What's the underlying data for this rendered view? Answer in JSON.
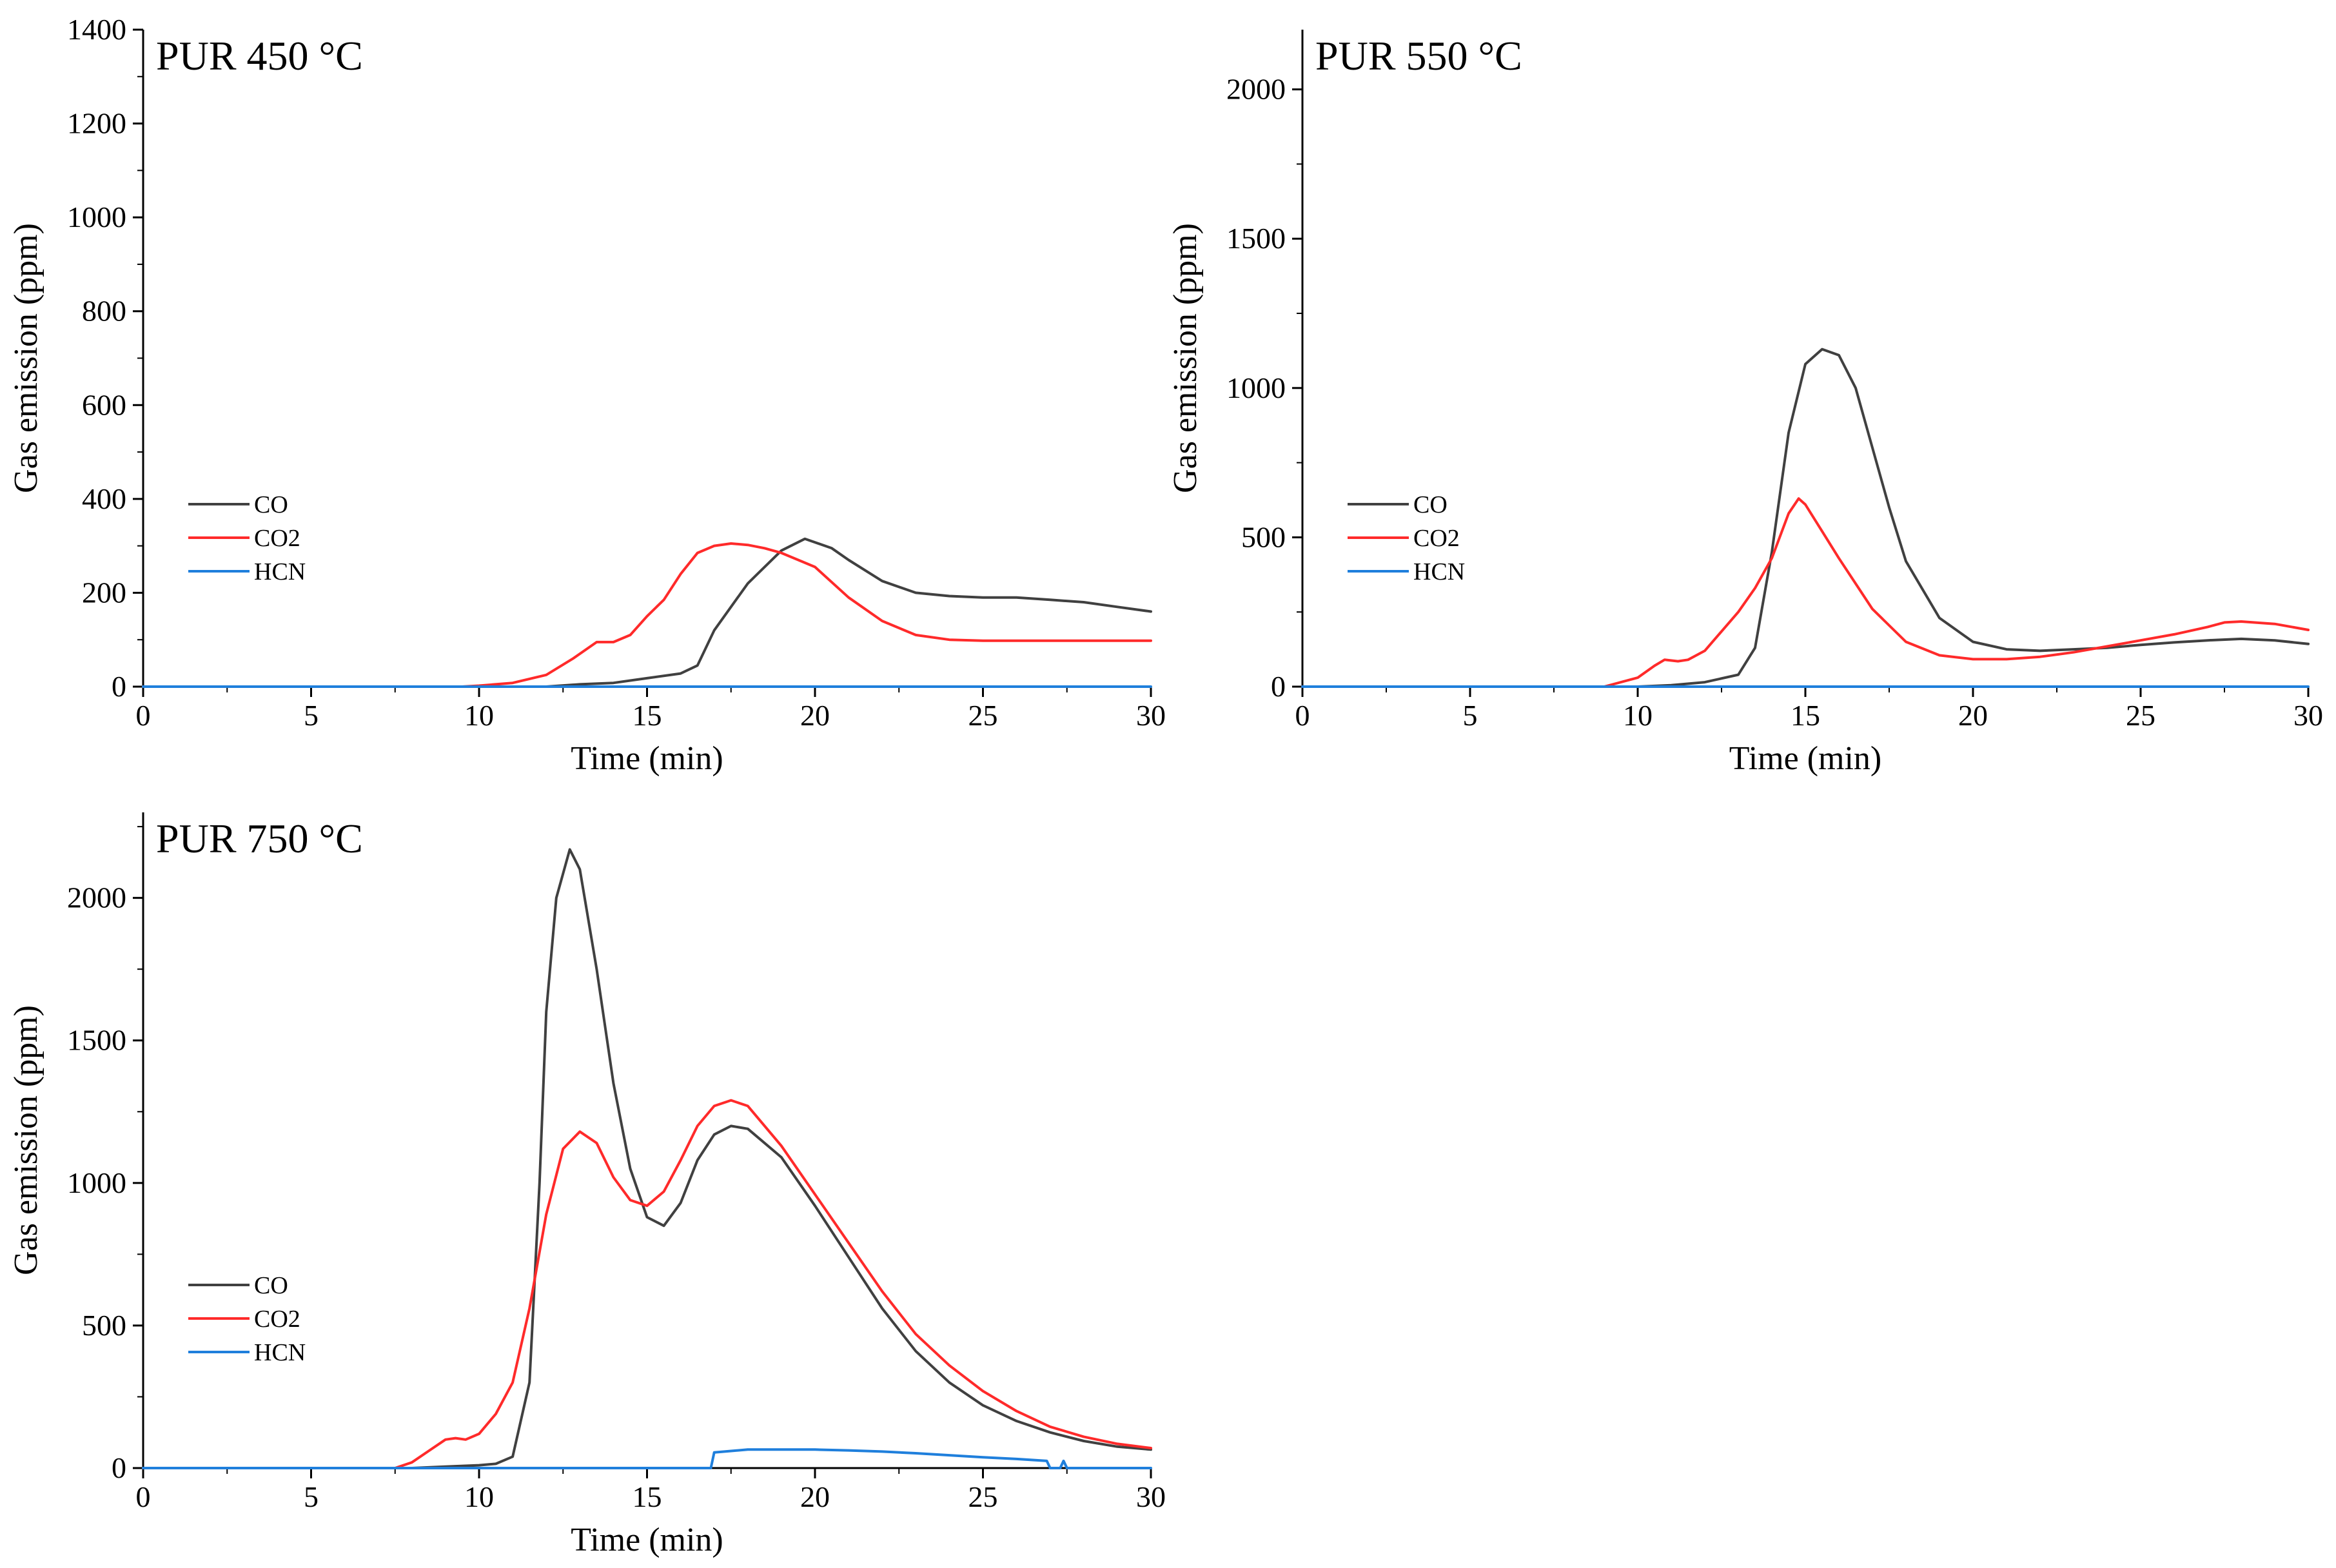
{
  "figure": {
    "background": "#ffffff"
  },
  "colors": {
    "CO": "#404040",
    "CO2": "#ff2a2a",
    "HCN": "#1f7fdc",
    "axis": "#000000"
  },
  "chart_data": [
    {
      "type": "line",
      "title": "PUR 450 °C",
      "xlabel": "Time (min)",
      "ylabel": "Gas emission (ppm)",
      "xlim": [
        0,
        30
      ],
      "ylim": [
        0,
        1400
      ],
      "xticks": [
        0,
        5,
        10,
        15,
        20,
        25,
        30
      ],
      "yticks": [
        0,
        200,
        400,
        600,
        800,
        1000,
        1200,
        1400
      ],
      "grid": false,
      "legend": "left-middle",
      "series": [
        {
          "name": "CO",
          "x": [
            0,
            12,
            13,
            14,
            15,
            16,
            16.5,
            17,
            18,
            19,
            19.7,
            20.5,
            21,
            22,
            23,
            24,
            25,
            26,
            27,
            28,
            29,
            30
          ],
          "values": [
            0,
            0,
            5,
            8,
            18,
            28,
            45,
            120,
            220,
            290,
            315,
            295,
            270,
            225,
            200,
            193,
            190,
            190,
            185,
            180,
            170,
            160
          ]
        },
        {
          "name": "CO2",
          "x": [
            0,
            9.5,
            10,
            11,
            12,
            12.8,
            13.5,
            14,
            14.5,
            15,
            15.5,
            16,
            16.5,
            17,
            17.5,
            18,
            18.5,
            19,
            19.5,
            20,
            21,
            22,
            23,
            24,
            25,
            26,
            27,
            28,
            29,
            30
          ],
          "values": [
            0,
            0,
            2,
            8,
            25,
            60,
            95,
            95,
            110,
            150,
            185,
            240,
            285,
            300,
            305,
            302,
            295,
            285,
            270,
            255,
            190,
            140,
            110,
            100,
            98,
            98,
            98,
            98,
            98,
            98
          ]
        },
        {
          "name": "HCN",
          "x": [
            0,
            30
          ],
          "values": [
            0,
            0
          ]
        }
      ]
    },
    {
      "type": "line",
      "title": "PUR 550 °C",
      "xlabel": "Time (min)",
      "ylabel": "Gas emission (ppm)",
      "xlim": [
        0,
        30
      ],
      "ylim": [
        0,
        2200
      ],
      "xticks": [
        0,
        5,
        10,
        15,
        20,
        25,
        30
      ],
      "yticks": [
        0,
        500,
        1000,
        1500,
        2000
      ],
      "grid": false,
      "legend": "left-middle",
      "series": [
        {
          "name": "CO",
          "x": [
            0,
            10,
            11,
            12,
            13,
            13.5,
            14,
            14.5,
            15,
            15.5,
            16,
            16.5,
            17,
            17.5,
            18,
            19,
            20,
            21,
            22,
            23,
            24,
            25,
            26,
            27,
            28,
            29,
            30
          ],
          "values": [
            0,
            0,
            5,
            15,
            40,
            130,
            450,
            850,
            1080,
            1130,
            1110,
            1000,
            800,
            600,
            420,
            230,
            150,
            125,
            120,
            125,
            130,
            140,
            148,
            155,
            160,
            155,
            143
          ]
        },
        {
          "name": "CO2",
          "x": [
            0,
            9,
            10,
            10.5,
            10.8,
            11.2,
            11.5,
            12,
            13,
            13.5,
            14,
            14.5,
            14.8,
            15,
            15.5,
            16,
            17,
            18,
            19,
            20,
            21,
            22,
            23,
            24,
            25,
            26,
            27,
            27.5,
            28,
            29,
            30
          ],
          "values": [
            0,
            0,
            30,
            70,
            90,
            85,
            90,
            120,
            250,
            330,
            430,
            580,
            630,
            610,
            520,
            430,
            260,
            150,
            105,
            92,
            92,
            100,
            115,
            135,
            155,
            175,
            200,
            215,
            218,
            210,
            190
          ]
        },
        {
          "name": "HCN",
          "x": [
            0,
            30
          ],
          "values": [
            0,
            0
          ]
        }
      ]
    },
    {
      "type": "line",
      "title": "PUR 750 °C",
      "xlabel": "Time (min)",
      "ylabel": "Gas emission (ppm)",
      "xlim": [
        0,
        30
      ],
      "ylim": [
        0,
        2300
      ],
      "xticks": [
        0,
        5,
        10,
        15,
        20,
        25,
        30
      ],
      "yticks": [
        0,
        500,
        1000,
        1500,
        2000
      ],
      "grid": false,
      "legend": "left-lower",
      "series": [
        {
          "name": "CO",
          "x": [
            0,
            8,
            9,
            10,
            10.5,
            11,
            11.5,
            11.8,
            12,
            12.3,
            12.7,
            13,
            13.5,
            14,
            14.5,
            15,
            15.5,
            16,
            16.5,
            17,
            17.5,
            18,
            19,
            20,
            21,
            22,
            23,
            24,
            25,
            26,
            27,
            28,
            29,
            30
          ],
          "values": [
            0,
            0,
            5,
            10,
            15,
            40,
            300,
            1000,
            1600,
            2000,
            2170,
            2100,
            1750,
            1350,
            1050,
            880,
            850,
            930,
            1080,
            1170,
            1200,
            1190,
            1090,
            920,
            740,
            560,
            410,
            300,
            220,
            165,
            125,
            95,
            75,
            65
          ]
        },
        {
          "name": "CO2",
          "x": [
            0,
            7.5,
            8,
            8.5,
            9,
            9.3,
            9.6,
            10,
            10.5,
            11,
            11.5,
            12,
            12.5,
            13,
            13.5,
            14,
            14.5,
            15,
            15.5,
            16,
            16.5,
            17,
            17.5,
            18,
            19,
            20,
            21,
            22,
            23,
            24,
            25,
            26,
            27,
            28,
            29,
            30
          ],
          "values": [
            0,
            0,
            20,
            60,
            100,
            105,
            100,
            120,
            190,
            300,
            560,
            890,
            1120,
            1180,
            1140,
            1020,
            940,
            920,
            970,
            1080,
            1200,
            1270,
            1290,
            1270,
            1130,
            960,
            790,
            620,
            470,
            360,
            270,
            200,
            145,
            110,
            85,
            70
          ]
        },
        {
          "name": "HCN",
          "x": [
            0,
            16.9,
            17,
            17.5,
            18,
            19,
            20,
            21,
            22,
            23,
            24,
            25,
            26,
            26.9,
            27,
            27.3,
            27.4,
            27.5,
            30
          ],
          "values": [
            0,
            0,
            55,
            60,
            65,
            65,
            65,
            62,
            58,
            52,
            45,
            38,
            32,
            25,
            0,
            0,
            25,
            0,
            0
          ]
        }
      ]
    }
  ]
}
